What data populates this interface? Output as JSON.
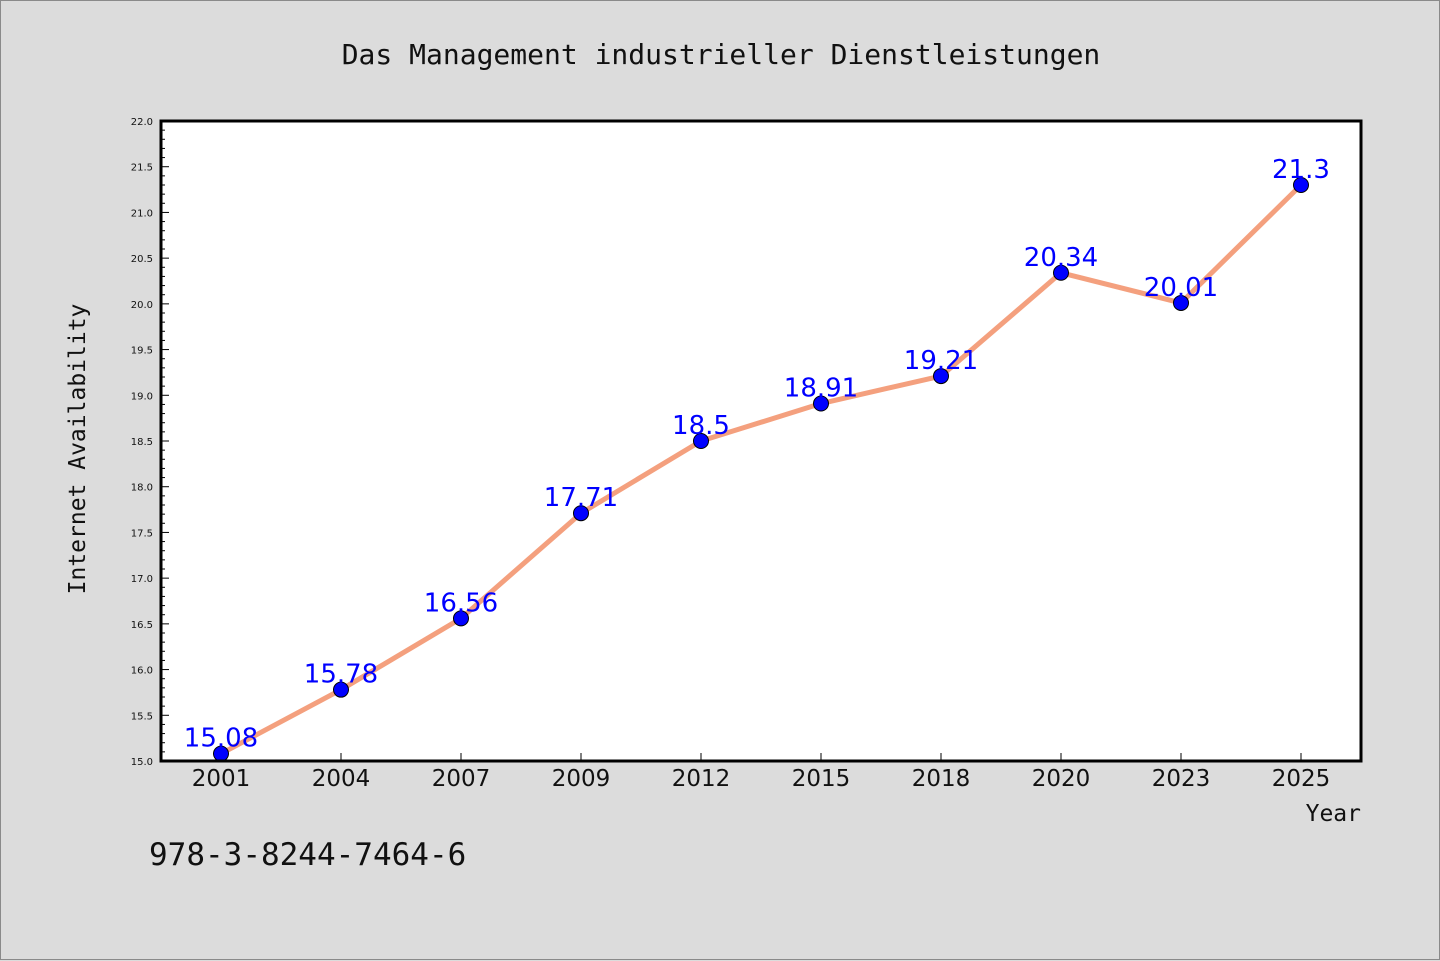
{
  "footnote": "978-3-8244-7464-6",
  "chart_data": {
    "type": "line",
    "title": "Das Management industrieller Dienstleistungen",
    "xlabel": "Year",
    "ylabel": "Internet Availability",
    "categories": [
      "2001",
      "2004",
      "2007",
      "2009",
      "2012",
      "2015",
      "2018",
      "2020",
      "2023",
      "2025"
    ],
    "values": [
      15.08,
      15.78,
      16.56,
      17.71,
      18.5,
      18.91,
      19.21,
      20.34,
      20.01,
      21.3
    ],
    "data_labels": [
      "15.08",
      "15.78",
      "16.56",
      "17.71",
      "18.5",
      "18.91",
      "19.21",
      "20.34",
      "20.01",
      "21.3"
    ],
    "ylim": [
      15.0,
      22.0
    ],
    "yticks": [
      "15.0",
      "15.5",
      "16.0",
      "16.5",
      "17.0",
      "17.5",
      "18.0",
      "18.5",
      "19.0",
      "19.5",
      "20.0",
      "20.5",
      "21.0",
      "21.5",
      "22.0"
    ],
    "grid": false,
    "line_color": "#f4a07e",
    "marker_color": "#0000ff",
    "label_color": "#0000ff"
  }
}
